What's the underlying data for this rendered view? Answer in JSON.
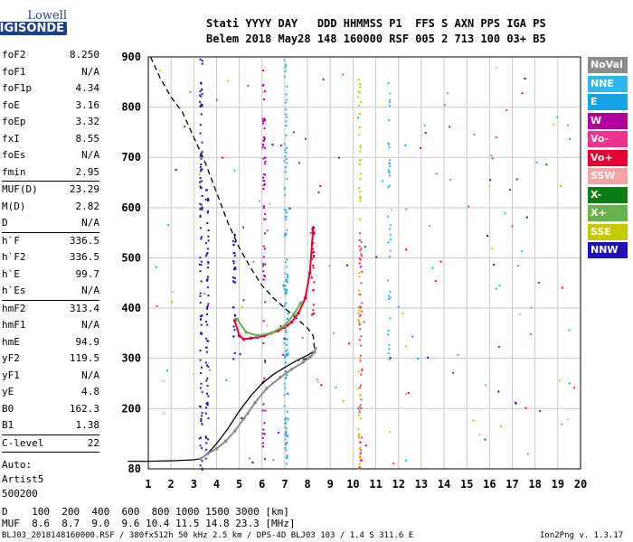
{
  "logo": {
    "line1": "Lowell",
    "line2": "DIGISONDE"
  },
  "header": {
    "row1": "Stati YYYY DAY   DDD HHMMSS P1  FFS S AXN PPS IGA PS",
    "row2": "Belem 2018 May28 148 160000 RSF 005 2 713 100 03+ B5"
  },
  "params": [
    {
      "name": "foF2",
      "value": "8.250"
    },
    {
      "name": "foF1",
      "value": "N/A"
    },
    {
      "name": "foF1p",
      "value": "4.34"
    },
    {
      "name": "foE",
      "value": "3.16"
    },
    {
      "name": "foEp",
      "value": "3.32"
    },
    {
      "name": "fxI",
      "value": "8.55"
    },
    {
      "name": "foEs",
      "value": "N/A"
    },
    {
      "name": "fmin",
      "value": "2.95"
    },
    {
      "sep": true
    },
    {
      "name": "MUF(D)",
      "value": "23.29"
    },
    {
      "name": "M(D)",
      "value": "2.82"
    },
    {
      "name": "D",
      "value": "N/A"
    },
    {
      "sep": true
    },
    {
      "name": "h`F",
      "value": "336.5"
    },
    {
      "name": "h`F2",
      "value": "336.5"
    },
    {
      "name": "h`E",
      "value": "99.7"
    },
    {
      "name": "h`Es",
      "value": "N/A"
    },
    {
      "sep": true
    },
    {
      "name": "hmF2",
      "value": "313.4"
    },
    {
      "name": "hmF1",
      "value": "N/A"
    },
    {
      "name": "hmE",
      "value": "94.9"
    },
    {
      "name": "yF2",
      "value": "119.5"
    },
    {
      "name": "yF1",
      "value": "N/A"
    },
    {
      "name": "yE",
      "value": "4.8"
    },
    {
      "name": "B0",
      "value": "162.3"
    },
    {
      "name": "B1",
      "value": "1.38"
    },
    {
      "sep": true
    },
    {
      "name": "C-level",
      "value": "22"
    },
    {
      "sep": true
    }
  ],
  "auto": [
    "Auto:",
    "Artist5",
    "500200"
  ],
  "legend": [
    {
      "label": "NoVal",
      "color": "#8c8c8c"
    },
    {
      "label": "NNE",
      "color": "#2fb6f0"
    },
    {
      "label": "E",
      "color": "#16a4e6"
    },
    {
      "label": "W",
      "color": "#b0009e"
    },
    {
      "label": "Vo-",
      "color": "#f0328c"
    },
    {
      "label": "Vo+",
      "color": "#e60032"
    },
    {
      "label": "SSW",
      "color": "#f5a3a3"
    },
    {
      "label": "X-",
      "color": "#0a7d14"
    },
    {
      "label": "X+",
      "color": "#6ab04c"
    },
    {
      "label": "SSE",
      "color": "#c8c800"
    },
    {
      "label": "NNW",
      "color": "#1e14b4"
    }
  ],
  "footer": {
    "row_d": "D    100  200  400  600  800 1000 1500 3000 [km]",
    "row_muf": "MUF  8.6  8.7  9.0  9.6 10.4 11.5 14.8 23.3 [MHz]",
    "file": "BLJ03_2018148160000.RSF / 380fx512h 50 kHz 2.5 km / DPS-4D BLJ03 103 / 1.4 S 311.6 E",
    "version": "Ion2Png v. 1.3.17"
  },
  "chart_data": {
    "type": "scatter",
    "title": "",
    "xlabel": "",
    "ylabel": "",
    "xlim": [
      1,
      20
    ],
    "ylim": [
      80,
      900
    ],
    "x_ticks": [
      1,
      2,
      3,
      4,
      5,
      6,
      7,
      8,
      9,
      10,
      11,
      12,
      13,
      14,
      15,
      16,
      17,
      18,
      19,
      20
    ],
    "y_ticks": [
      80,
      200,
      300,
      400,
      500,
      600,
      700,
      800,
      900
    ],
    "grid": true,
    "series": [
      {
        "name": "Vo+",
        "color": "#e60032",
        "kind": "trace",
        "x": [
          4.8,
          5.0,
          5.2,
          5.5,
          5.8,
          6.1,
          6.4,
          6.7,
          7.0,
          7.3,
          7.6,
          7.9,
          8.1,
          8.25
        ],
        "y": [
          375,
          345,
          338,
          340,
          342,
          345,
          350,
          355,
          362,
          372,
          390,
          420,
          470,
          560
        ]
      },
      {
        "name": "X+",
        "color": "#6ab04c",
        "kind": "trace",
        "x": [
          4.9,
          5.3,
          5.8,
          6.4,
          7.0,
          7.4,
          7.7
        ],
        "y": [
          378,
          352,
          345,
          350,
          365,
          388,
          410
        ]
      },
      {
        "name": "NoVal",
        "color": "#8c8c8c",
        "kind": "trace",
        "x": [
          3.3,
          3.6,
          4.0,
          4.4,
          4.8,
          5.2,
          5.7,
          6.2,
          6.8,
          7.3,
          7.8,
          8.1,
          8.3,
          8.35
        ],
        "y": [
          100,
          110,
          120,
          135,
          155,
          180,
          212,
          240,
          262,
          278,
          292,
          302,
          312,
          320
        ]
      }
    ],
    "profiles": [
      {
        "name": "electron-density-profile",
        "style": "solid",
        "x": [
          0.1,
          1.0,
          2.0,
          3.0,
          3.3,
          3.6,
          4.0,
          4.5,
          5.0,
          5.5,
          6.0,
          6.5,
          7.0,
          7.5,
          8.0,
          8.25
        ],
        "y": [
          95,
          95,
          96,
          98,
          100,
          110,
          130,
          160,
          195,
          225,
          250,
          268,
          282,
          295,
          306,
          313
        ]
      },
      {
        "name": "extrapolated-topside",
        "style": "dashed",
        "x": [
          1.1,
          1.5,
          2.0,
          2.5,
          3.0,
          3.5,
          4.0,
          4.5,
          5.0,
          5.5,
          6.0,
          6.5,
          7.0,
          7.5,
          8.0,
          8.25,
          8.3,
          8.2,
          8.0,
          7.6
        ],
        "y": [
          900,
          860,
          820,
          790,
          740,
          690,
          630,
          570,
          520,
          480,
          445,
          420,
          400,
          380,
          360,
          345,
          320,
          305,
          300,
          295
        ]
      }
    ],
    "muf_table": {
      "D_km": [
        100,
        200,
        400,
        600,
        800,
        1000,
        1500,
        3000
      ],
      "MUF_MHz": [
        8.6,
        8.7,
        9.0,
        9.6,
        10.4,
        11.5,
        14.8,
        23.3
      ]
    }
  }
}
